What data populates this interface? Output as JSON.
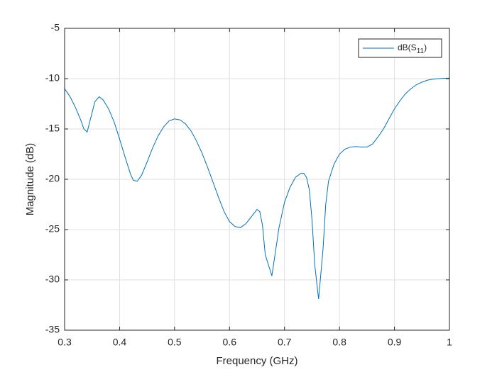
{
  "chart_data": {
    "type": "line",
    "x_label": "Frequency (GHz)",
    "y_label": "Magnitude (dB)",
    "xlim": [
      0.3,
      1
    ],
    "ylim": [
      -35,
      -5
    ],
    "xticks": [
      0.3,
      0.4,
      0.5,
      0.6,
      0.7,
      0.8,
      0.9,
      1
    ],
    "yticks": [
      -35,
      -30,
      -25,
      -20,
      -15,
      -10,
      -5
    ],
    "grid": true,
    "legend": "upper right",
    "x": [
      0.3,
      0.31,
      0.32,
      0.33,
      0.335,
      0.341,
      0.355,
      0.363,
      0.37,
      0.38,
      0.39,
      0.4,
      0.41,
      0.42,
      0.425,
      0.432,
      0.44,
      0.45,
      0.46,
      0.47,
      0.48,
      0.49,
      0.5,
      0.51,
      0.52,
      0.53,
      0.54,
      0.55,
      0.56,
      0.57,
      0.58,
      0.59,
      0.6,
      0.61,
      0.62,
      0.63,
      0.64,
      0.65,
      0.655,
      0.66,
      0.665,
      0.677,
      0.68,
      0.69,
      0.7,
      0.71,
      0.72,
      0.73,
      0.735,
      0.74,
      0.745,
      0.75,
      0.755,
      0.762,
      0.77,
      0.775,
      0.78,
      0.79,
      0.8,
      0.81,
      0.82,
      0.83,
      0.84,
      0.85,
      0.86,
      0.87,
      0.88,
      0.89,
      0.9,
      0.91,
      0.92,
      0.93,
      0.94,
      0.95,
      0.96,
      0.97,
      0.98,
      1
    ],
    "series": [
      {
        "name": "dB(S11)",
        "color": "#0072bd",
        "values": [
          -11.0,
          -11.8,
          -12.9,
          -14.2,
          -15.0,
          -15.3,
          -12.3,
          -11.8,
          -12.1,
          -13.0,
          -14.3,
          -16.0,
          -17.8,
          -19.5,
          -20.1,
          -20.2,
          -19.6,
          -18.3,
          -16.9,
          -15.7,
          -14.8,
          -14.2,
          -14.0,
          -14.1,
          -14.5,
          -15.2,
          -16.2,
          -17.4,
          -18.8,
          -20.3,
          -21.8,
          -23.2,
          -24.2,
          -24.7,
          -24.8,
          -24.4,
          -23.7,
          -23.0,
          -23.2,
          -24.6,
          -27.5,
          -29.6,
          -28.5,
          -24.8,
          -22.3,
          -20.8,
          -19.8,
          -19.4,
          -19.4,
          -19.8,
          -21.0,
          -24.0,
          -28.5,
          -31.9,
          -27.0,
          -22.5,
          -20.2,
          -18.5,
          -17.5,
          -17.0,
          -16.8,
          -16.75,
          -16.8,
          -16.8,
          -16.5,
          -15.8,
          -15.0,
          -14.0,
          -13.0,
          -12.2,
          -11.5,
          -11.0,
          -10.6,
          -10.35,
          -10.15,
          -10.05,
          -10.0,
          -9.95
        ]
      }
    ]
  }
}
